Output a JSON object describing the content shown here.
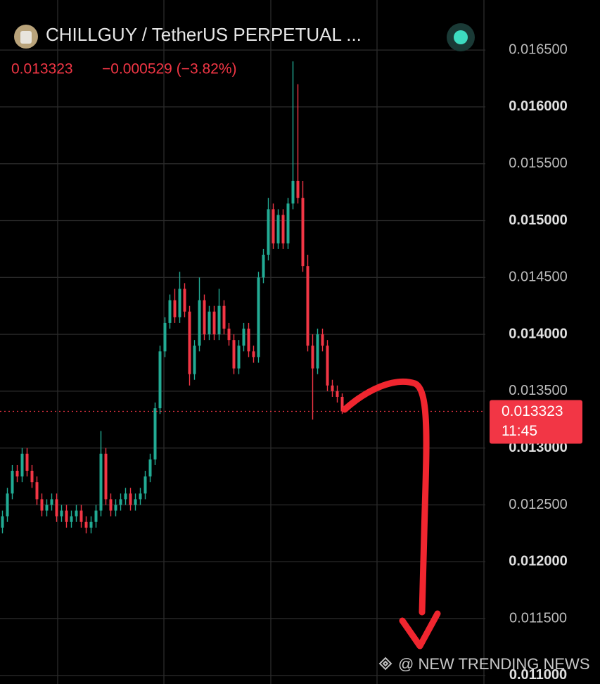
{
  "chart_data": {
    "type": "candlestick",
    "title": "CHILLGUY / TetherUS PERPETUAL ...",
    "change_label": "−0.000529 (−3.82%)",
    "last_price": 0.013323,
    "countdown": "11:45",
    "watermark": "@ NEW TRENDING NEWS",
    "up_color": "#22ab94",
    "down_color": "#f23645",
    "grid": true,
    "ylim": [
      0.010925,
      0.01694
    ],
    "yticks": [
      {
        "value": 0.0165,
        "label": "0.016500"
      },
      {
        "value": 0.016,
        "label": "0.016000"
      },
      {
        "value": 0.0155,
        "label": "0.015500"
      },
      {
        "value": 0.015,
        "label": "0.015000"
      },
      {
        "value": 0.0145,
        "label": "0.014500"
      },
      {
        "value": 0.014,
        "label": "0.014000"
      },
      {
        "value": 0.0135,
        "label": "0.013500"
      },
      {
        "value": 0.013,
        "label": "0.013000"
      },
      {
        "value": 0.0125,
        "label": "0.012500"
      },
      {
        "value": 0.012,
        "label": "0.012000"
      },
      {
        "value": 0.0115,
        "label": "0.011500"
      },
      {
        "value": 0.011,
        "label": "0.011000"
      }
    ],
    "open": [
      0.0123,
      0.0124,
      0.0126,
      0.0128,
      0.01275,
      0.01295,
      0.0128,
      0.0127,
      0.01255,
      0.01245,
      0.0125,
      0.01255,
      0.0124,
      0.01245,
      0.01235,
      0.0124,
      0.01245,
      0.01235,
      0.0123,
      0.01235,
      0.01245,
      0.01295,
      0.01255,
      0.01245,
      0.0125,
      0.01255,
      0.0126,
      0.0125,
      0.01255,
      0.0126,
      0.01275,
      0.0129,
      0.01335,
      0.01385,
      0.0141,
      0.0143,
      0.01415,
      0.0144,
      0.0142,
      0.01365,
      0.0139,
      0.0143,
      0.014,
      0.0142,
      0.014,
      0.01425,
      0.01405,
      0.01395,
      0.0137,
      0.0139,
      0.01405,
      0.01385,
      0.0138,
      0.0145,
      0.0147,
      0.0151,
      0.0148,
      0.01505,
      0.0148,
      0.01515,
      0.01535,
      0.0152,
      0.0146,
      0.0139,
      0.0137,
      0.014,
      0.0139,
      0.01355,
      0.0135,
      0.01345
    ],
    "high": [
      0.01245,
      0.01265,
      0.01285,
      0.01285,
      0.013,
      0.013,
      0.01285,
      0.01275,
      0.0126,
      0.01255,
      0.0126,
      0.0126,
      0.0125,
      0.0125,
      0.01245,
      0.0125,
      0.0125,
      0.0124,
      0.0124,
      0.0125,
      0.01315,
      0.013,
      0.0126,
      0.01255,
      0.0126,
      0.01265,
      0.01265,
      0.0126,
      0.01265,
      0.0128,
      0.01295,
      0.0134,
      0.0139,
      0.01415,
      0.01435,
      0.0144,
      0.01455,
      0.01445,
      0.01425,
      0.01395,
      0.0145,
      0.01435,
      0.01425,
      0.01425,
      0.0144,
      0.0143,
      0.0141,
      0.014,
      0.01395,
      0.0141,
      0.0141,
      0.0139,
      0.01455,
      0.01475,
      0.0152,
      0.01515,
      0.0151,
      0.0151,
      0.0152,
      0.0164,
      0.0162,
      0.01535,
      0.0147,
      0.014,
      0.01405,
      0.01405,
      0.01395,
      0.0136,
      0.01355,
      0.01348
    ],
    "low": [
      0.01225,
      0.01235,
      0.01255,
      0.0127,
      0.0127,
      0.01275,
      0.01265,
      0.0125,
      0.0124,
      0.0124,
      0.01245,
      0.01235,
      0.01235,
      0.0123,
      0.0123,
      0.01235,
      0.0123,
      0.01225,
      0.01225,
      0.0123,
      0.0124,
      0.0125,
      0.0124,
      0.0124,
      0.01245,
      0.0125,
      0.01245,
      0.01245,
      0.0125,
      0.01255,
      0.0127,
      0.01285,
      0.0133,
      0.0138,
      0.01405,
      0.0141,
      0.0141,
      0.01415,
      0.01355,
      0.0136,
      0.01385,
      0.01395,
      0.01395,
      0.01395,
      0.01395,
      0.014,
      0.0139,
      0.01365,
      0.01365,
      0.01385,
      0.0138,
      0.01375,
      0.01375,
      0.01445,
      0.01465,
      0.01475,
      0.01475,
      0.01475,
      0.01475,
      0.0151,
      0.01515,
      0.01455,
      0.01385,
      0.01325,
      0.01365,
      0.01385,
      0.0135,
      0.01345,
      0.0134,
      0.0133
    ],
    "close": [
      0.0124,
      0.0126,
      0.0128,
      0.01275,
      0.01295,
      0.0128,
      0.0127,
      0.01255,
      0.01245,
      0.0125,
      0.01255,
      0.0124,
      0.01245,
      0.01235,
      0.0124,
      0.01245,
      0.01235,
      0.0123,
      0.01235,
      0.01245,
      0.01295,
      0.01255,
      0.01245,
      0.0125,
      0.01255,
      0.0126,
      0.0125,
      0.01255,
      0.0126,
      0.01275,
      0.0129,
      0.01335,
      0.01385,
      0.0141,
      0.0143,
      0.01415,
      0.0144,
      0.0142,
      0.01365,
      0.0139,
      0.0143,
      0.014,
      0.0142,
      0.014,
      0.01425,
      0.01405,
      0.01395,
      0.0137,
      0.0139,
      0.01405,
      0.01385,
      0.0138,
      0.0145,
      0.0147,
      0.0151,
      0.0148,
      0.01505,
      0.0148,
      0.01515,
      0.01535,
      0.0152,
      0.0146,
      0.0139,
      0.0137,
      0.014,
      0.0139,
      0.01355,
      0.0135,
      0.01345,
      0.013323
    ]
  }
}
